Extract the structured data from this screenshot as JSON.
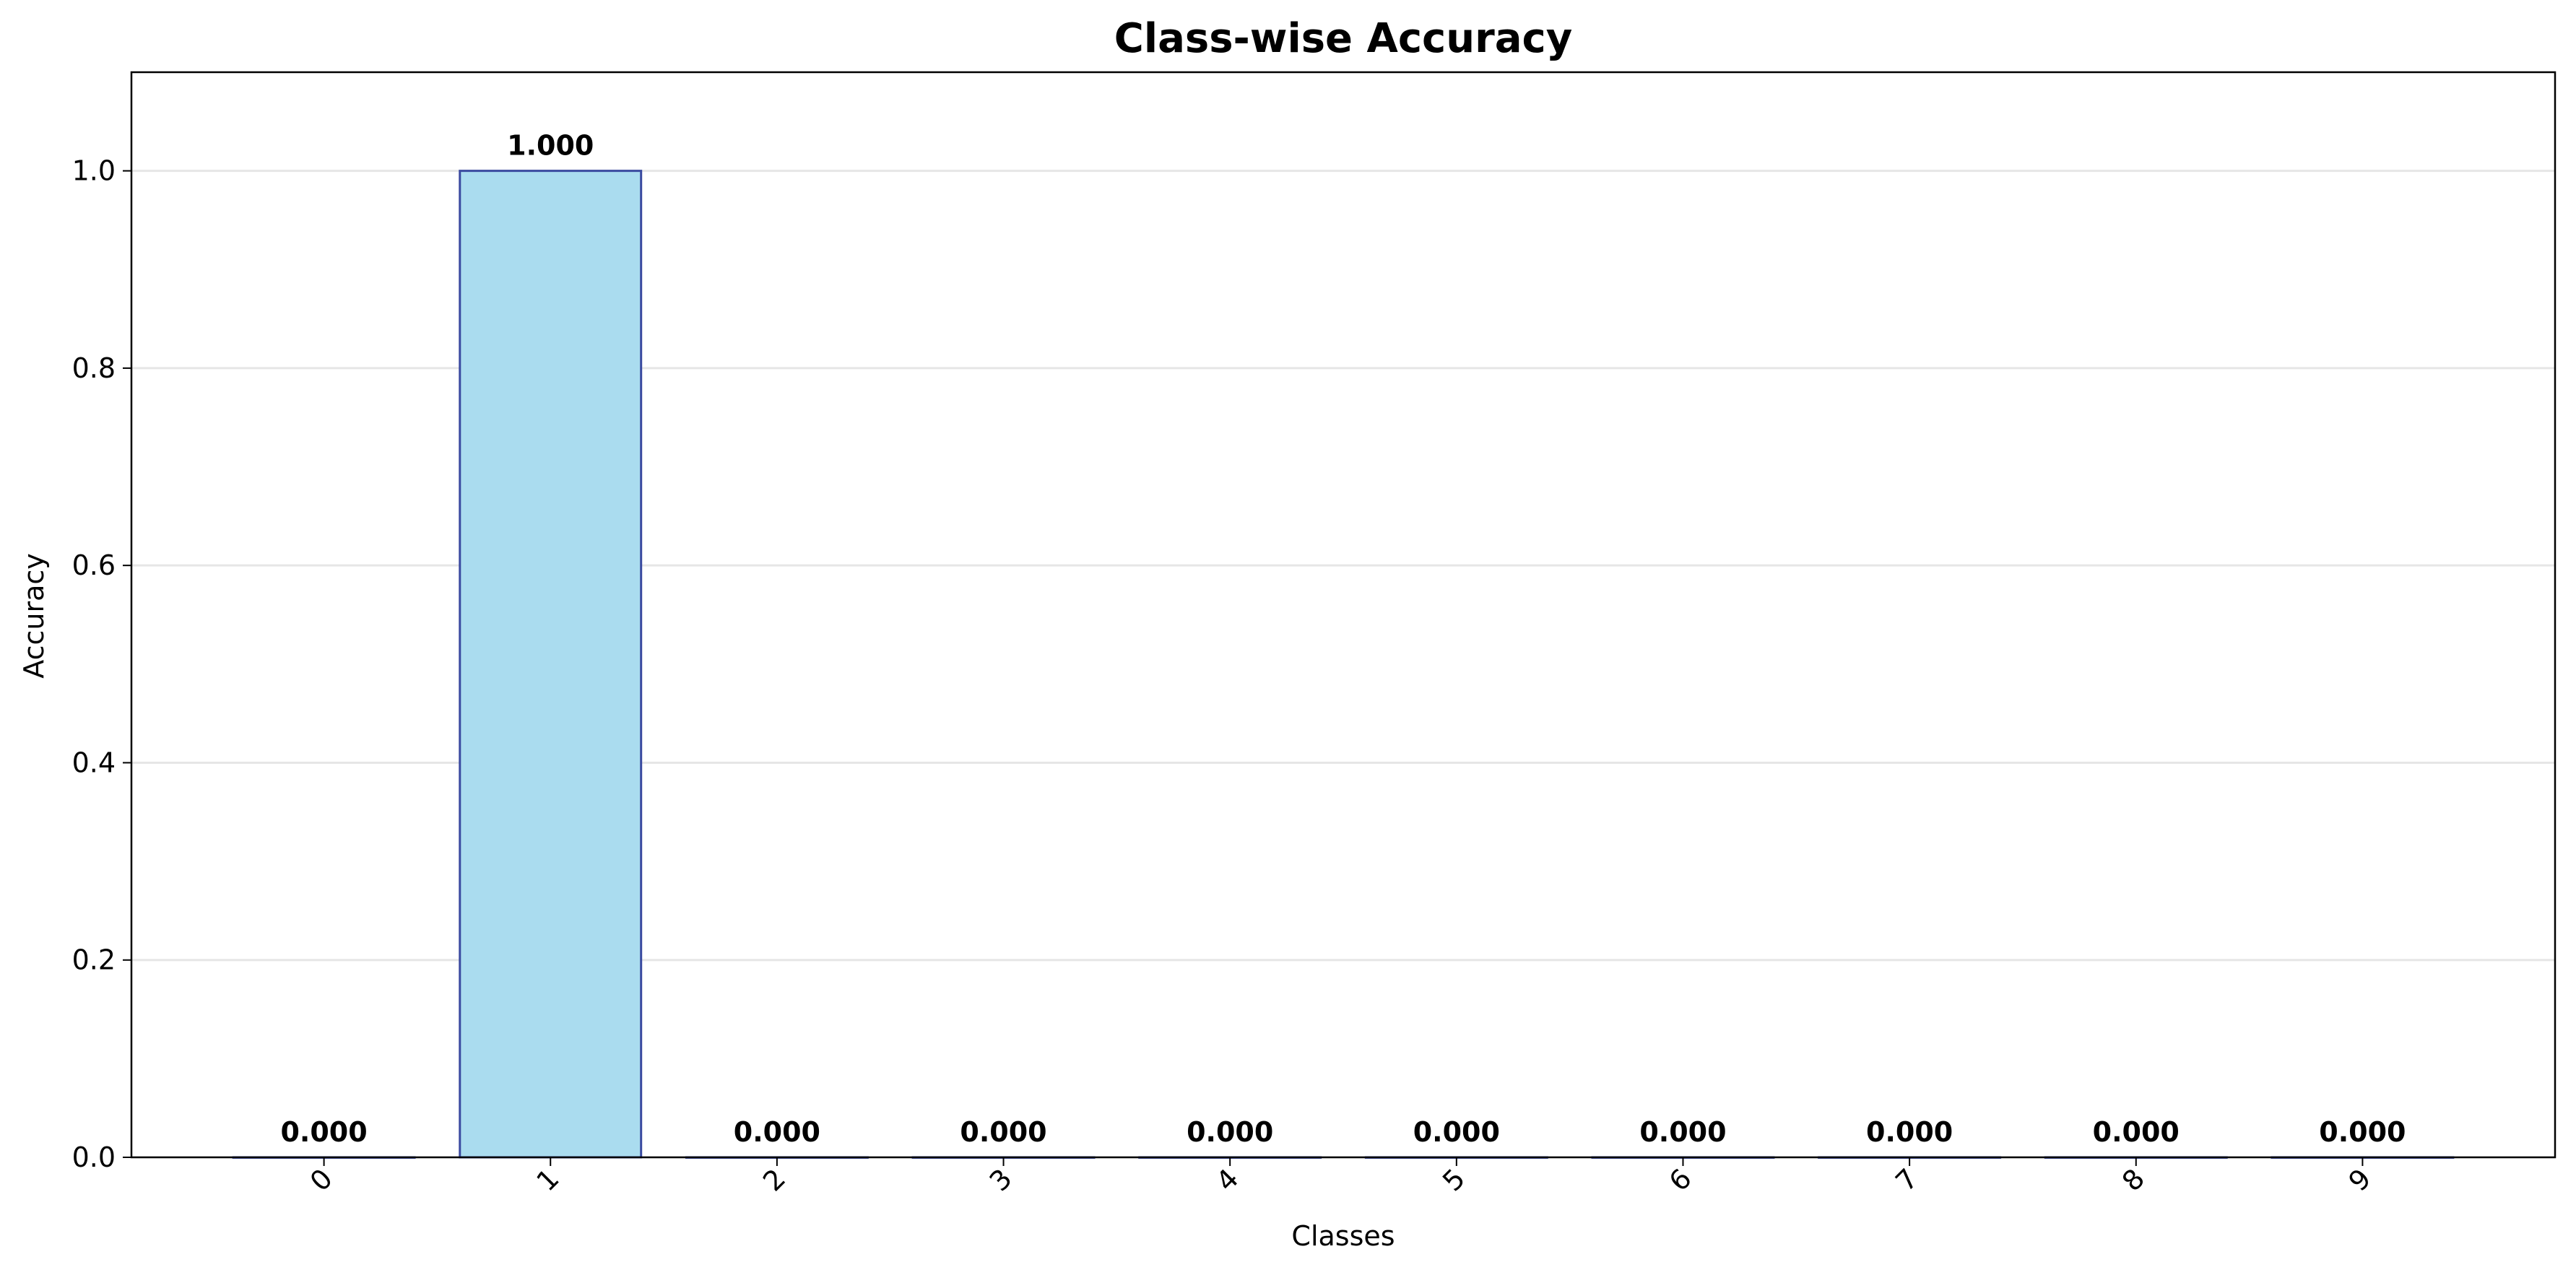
{
  "chart_data": {
    "type": "bar",
    "title": "Class-wise Accuracy",
    "xlabel": "Classes",
    "ylabel": "Accuracy",
    "categories": [
      "0",
      "1",
      "2",
      "3",
      "4",
      "5",
      "6",
      "7",
      "8",
      "9"
    ],
    "values": [
      0.0,
      1.0,
      0.0,
      0.0,
      0.0,
      0.0,
      0.0,
      0.0,
      0.0,
      0.0
    ],
    "data_labels": [
      "0.000",
      "1.000",
      "0.000",
      "0.000",
      "0.000",
      "0.000",
      "0.000",
      "0.000",
      "0.000",
      "0.000"
    ],
    "ylim": [
      0,
      1.1
    ],
    "yticks": [
      "0.0",
      "0.2",
      "0.4",
      "0.6",
      "0.8",
      "1.0"
    ],
    "grid": "horizontal",
    "xtick_rotation": 45,
    "colors": {
      "bar_fill": "#aadcef",
      "bar_edge": "#3a4aa0",
      "grid": "#e6e6e6",
      "axis": "#000000"
    }
  }
}
